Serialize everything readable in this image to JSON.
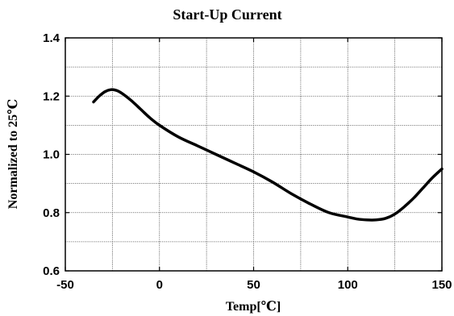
{
  "chart_data": {
    "type": "line",
    "title": "Start-Up Current",
    "xlabel": "Temp[℃]",
    "ylabel": "Normalized to 25℃",
    "xlim": [
      -50,
      150
    ],
    "ylim": [
      0.6,
      1.4
    ],
    "x_ticks": [
      "-50",
      "0",
      "50",
      "100",
      "150"
    ],
    "y_ticks": [
      "0.6",
      "0.8",
      "1.0",
      "1.2",
      "1.4"
    ],
    "x_grid": [
      -50,
      -25,
      0,
      25,
      50,
      75,
      100,
      125,
      150
    ],
    "y_grid": [
      0.6,
      0.7,
      0.8,
      0.9,
      1.0,
      1.1,
      1.2,
      1.3,
      1.4
    ],
    "grid": true,
    "series": [
      {
        "x": [
          -35,
          -32,
          -29,
          -26,
          -23,
          -20,
          -15,
          -10,
          -5,
          0,
          10,
          20,
          25,
          30,
          40,
          50,
          60,
          70,
          80,
          90,
          100,
          105,
          110,
          115,
          120,
          125,
          130,
          135,
          140,
          145,
          150
        ],
        "y": [
          1.18,
          1.2,
          1.215,
          1.222,
          1.22,
          1.21,
          1.185,
          1.155,
          1.125,
          1.1,
          1.06,
          1.03,
          1.015,
          1.0,
          0.97,
          0.94,
          0.905,
          0.865,
          0.83,
          0.8,
          0.785,
          0.778,
          0.775,
          0.775,
          0.78,
          0.795,
          0.82,
          0.85,
          0.885,
          0.92,
          0.95
        ]
      }
    ]
  }
}
